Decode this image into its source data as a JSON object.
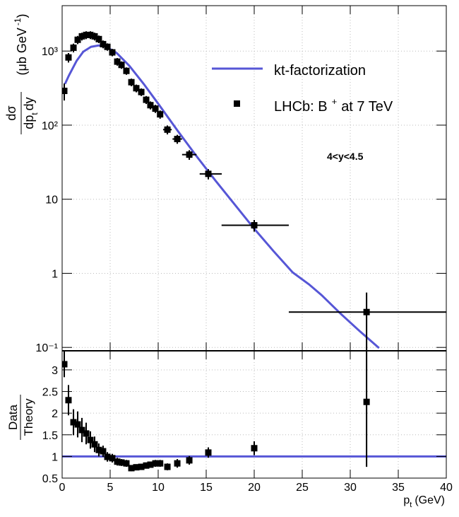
{
  "chart_data": [
    {
      "type": "scatter",
      "log_y": true,
      "grid": true,
      "xlim": [
        0,
        40
      ],
      "xticks": [
        0,
        5,
        10,
        15,
        20,
        25,
        30,
        35,
        40
      ],
      "ylim": [
        0.09,
        4100
      ],
      "yticks": [
        {
          "value": 0.1,
          "label": "10⁻¹"
        },
        1,
        10,
        {
          "value": 100,
          "label": "10²"
        },
        {
          "value": 1000,
          "label": "10³"
        }
      ],
      "ylabel_numerator": "dσ",
      "ylabel_denominator": "dp",
      "ylabel_denominator_sub": "t",
      "ylabel_denominator_tail": "dy",
      "ylabel_unit": "(μb GeV",
      "ylabel_unit_sup": "-1",
      "ylabel_unit_close": ")",
      "annotation": "4<y<4.5",
      "series": [
        {
          "name": "kt-factorization",
          "style": "line",
          "color": "#5656d6",
          "x": [
            0.3,
            0.7,
            1.5,
            2.2,
            3.0,
            3.8,
            4.6,
            5.7,
            7.0,
            8.5,
            10.0,
            12.0,
            14.0,
            16.0,
            18.0,
            20.0,
            22.0,
            24.0,
            25.7,
            27.0,
            29.0,
            31.0,
            33.0
          ],
          "values": [
            360,
            466,
            736,
            980,
            1140,
            1190,
            1140,
            937,
            632,
            359,
            195,
            85,
            38,
            17.6,
            8.4,
            4.0,
            2.0,
            1.03,
            0.71,
            0.51,
            0.285,
            0.165,
            0.098
          ]
        },
        {
          "name": "LHCb: B",
          "name_sup": "+",
          "name_tail": "at 7 TeV",
          "style": "markers",
          "color": "#000000",
          "x": [
            0.22,
            0.66,
            1.18,
            1.62,
            2.06,
            2.5,
            2.94,
            3.38,
            3.82,
            4.26,
            4.71,
            5.22,
            5.74,
            6.18,
            6.69,
            7.21,
            7.72,
            8.24,
            8.75,
            9.19,
            9.71,
            10.2,
            10.96,
            11.99,
            13.24,
            15.22,
            20,
            31.7
          ],
          "values": [
            290,
            820,
            1110,
            1420,
            1580,
            1650,
            1650,
            1580,
            1450,
            1240,
            1140,
            960,
            720,
            650,
            540,
            380,
            315,
            280,
            220,
            186,
            167,
            140,
            87,
            65,
            40,
            22,
            4.45,
            0.3
          ],
          "yerr": [
            75,
            120,
            150,
            180,
            190,
            200,
            200,
            190,
            170,
            150,
            130,
            110,
            85,
            75,
            62,
            45,
            38,
            33,
            27,
            23,
            21,
            18,
            12,
            9,
            6,
            3.5,
            0.8,
            0.25
          ],
          "xerr_minus": [
            0,
            0,
            0,
            0,
            0,
            0,
            0,
            0,
            0,
            0,
            0,
            0,
            0,
            0,
            0,
            0,
            0,
            0,
            0,
            0,
            0,
            0,
            0.45,
            0.5,
            0.75,
            0.9,
            3.4,
            8.1
          ],
          "xerr_plus": [
            0,
            0,
            0,
            0,
            0,
            0,
            0,
            0,
            0,
            0,
            0,
            0,
            0,
            0,
            0,
            0,
            0,
            0,
            0,
            0,
            0,
            0,
            0.45,
            0.5,
            0.75,
            1.4,
            3.6,
            8.3
          ]
        }
      ]
    },
    {
      "type": "scatter",
      "grid": true,
      "xlim": [
        0,
        40
      ],
      "xticks": [
        0,
        5,
        10,
        15,
        20,
        25,
        30,
        35,
        40
      ],
      "ylim": [
        0.5,
        3.44
      ],
      "yticks": [
        0.5,
        1,
        1.5,
        2,
        2.5,
        3
      ],
      "xlabel": "p",
      "xlabel_sub": "t",
      "xlabel_tail": "(GeV)",
      "ylabel_numerator": "Data",
      "ylabel_denominator": "Theory",
      "reference": 1,
      "reference_color": "#5656d6",
      "series": [
        {
          "style": "markers",
          "color": "#000000",
          "x": [
            0.22,
            0.66,
            1.18,
            1.62,
            2.06,
            2.5,
            2.94,
            3.38,
            3.82,
            4.26,
            4.71,
            5.22,
            5.74,
            6.18,
            6.69,
            7.21,
            7.72,
            8.24,
            8.75,
            9.19,
            9.71,
            10.2,
            10.96,
            11.99,
            13.24,
            15.22,
            20,
            31.7
          ],
          "values": [
            3.13,
            2.3,
            1.79,
            1.74,
            1.61,
            1.53,
            1.38,
            1.28,
            1.15,
            1.12,
            0.99,
            0.96,
            0.88,
            0.86,
            0.84,
            0.73,
            0.75,
            0.76,
            0.79,
            0.81,
            0.84,
            0.84,
            0.76,
            0.84,
            0.91,
            1.09,
            1.19,
            2.26
          ],
          "yerr": [
            0.3,
            0.35,
            0.3,
            0.3,
            0.28,
            0.25,
            0.2,
            0.18,
            0.15,
            0.13,
            0.11,
            0.1,
            0.09,
            0.08,
            0.08,
            0.07,
            0.07,
            0.07,
            0.07,
            0.07,
            0.08,
            0.08,
            0.08,
            0.1,
            0.1,
            0.12,
            0.16,
            1.5
          ],
          "xerr_minus": [
            0,
            0,
            0,
            0,
            0,
            0,
            0,
            0,
            0,
            0,
            0,
            0,
            0,
            0,
            0,
            0,
            0,
            0,
            0,
            0,
            0,
            0,
            0,
            0,
            0,
            0,
            0,
            0
          ],
          "xerr_plus": [
            0,
            0,
            0,
            0,
            0,
            0,
            0,
            0,
            0,
            0,
            0,
            0,
            0,
            0,
            0,
            0,
            0,
            0,
            0,
            0,
            0,
            0,
            0,
            0,
            0,
            0,
            0,
            0
          ]
        }
      ]
    }
  ]
}
